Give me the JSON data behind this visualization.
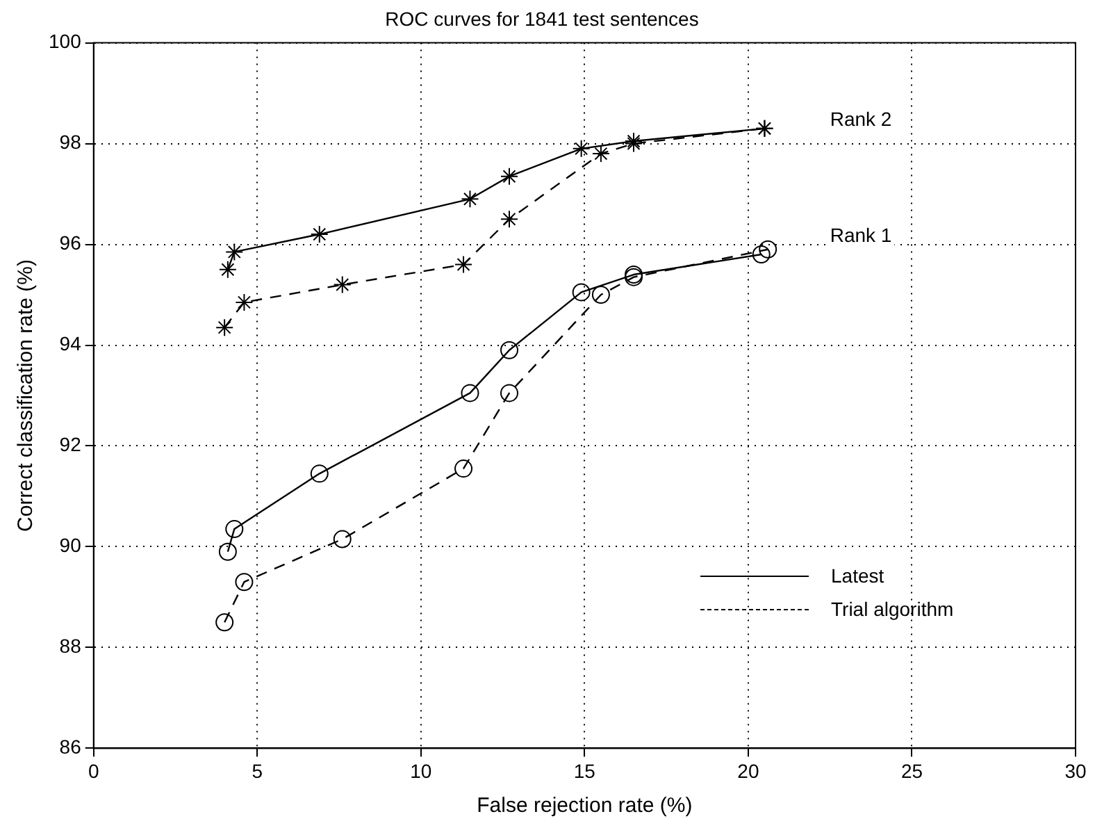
{
  "chart_data": {
    "type": "line",
    "title": "ROC curves for 1841 test sentences",
    "xlabel": "False rejection rate (%)",
    "ylabel": "Correct classification rate (%)",
    "xlim": [
      0,
      30
    ],
    "xticks": [
      0,
      5,
      10,
      15,
      20,
      25,
      30
    ],
    "ylim": [
      86,
      100
    ],
    "yticks": [
      86,
      88,
      90,
      92,
      94,
      96,
      98,
      100
    ],
    "grid": true,
    "legend": "bottom right",
    "annotations": [
      "Rank 2",
      "Rank 1"
    ],
    "series": [
      {
        "name": "Latest",
        "color": "#000000",
        "marker": "cross",
        "line_style": "solid",
        "x": [
          4.1,
          4.3,
          6.9,
          11.5,
          12.7,
          14.9,
          16.5,
          20.5
        ],
        "values": [
          95.5,
          95.85,
          96.2,
          96.9,
          97.35,
          97.9,
          98.05,
          98.3
        ]
      },
      {
        "name": "Trial algorithm",
        "color": "#000000",
        "marker": "cross",
        "line_style": "dashed",
        "x": [
          4.0,
          4.6,
          7.6,
          11.3,
          12.7,
          15.5,
          16.5,
          20.5
        ],
        "values": [
          94.35,
          94.85,
          95.2,
          95.6,
          96.5,
          97.8,
          98.0,
          98.3
        ]
      },
      {
        "color": "#000000",
        "marker": "circle",
        "line_style": "solid",
        "x": [
          4.1,
          4.3,
          6.9,
          11.5,
          12.7,
          14.9,
          16.5,
          20.4
        ],
        "values": [
          89.9,
          90.35,
          91.45,
          93.05,
          93.9,
          95.05,
          95.4,
          95.8
        ]
      },
      {
        "color": "#000000",
        "marker": "circle",
        "line_style": "dashed",
        "x": [
          4.0,
          4.6,
          7.6,
          11.3,
          12.7,
          15.5,
          16.5,
          20.6
        ],
        "values": [
          88.5,
          89.3,
          90.15,
          91.55,
          93.05,
          95.0,
          95.35,
          95.9
        ]
      }
    ]
  }
}
